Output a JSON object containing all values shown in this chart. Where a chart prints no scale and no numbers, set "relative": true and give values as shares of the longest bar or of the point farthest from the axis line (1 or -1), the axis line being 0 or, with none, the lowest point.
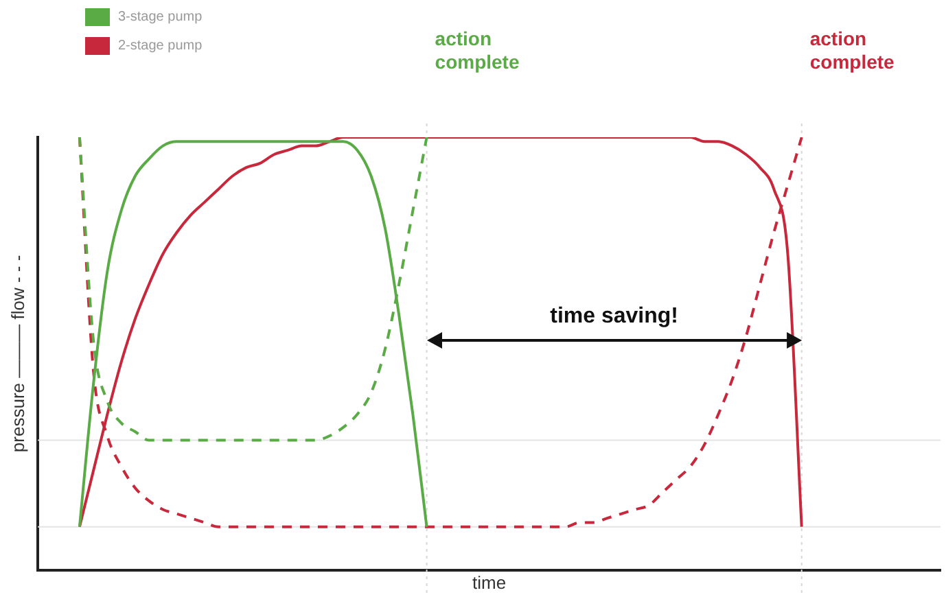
{
  "chart_data": {
    "type": "line",
    "relative": true,
    "xlabel": "time",
    "ylabel": "pressure ——— flow - - -",
    "legend": "top left",
    "grid": false,
    "categories": [
      null,
      null,
      null,
      null,
      null,
      null,
      null,
      null,
      null,
      null,
      null,
      null,
      null,
      null,
      null,
      null,
      null,
      null,
      null,
      null,
      null,
      null,
      null,
      null,
      null,
      null,
      null,
      null,
      null,
      null,
      null,
      null,
      null,
      null,
      null,
      null,
      null,
      null,
      null,
      null,
      null,
      null,
      null,
      null,
      null,
      null,
      null,
      null,
      null,
      null,
      null,
      null,
      null,
      null,
      null,
      null,
      null,
      null,
      null,
      null,
      null,
      null,
      null,
      null,
      null,
      null
    ],
    "series": [
      {
        "name": "3-stage pump",
        "color": "#5aab46",
        "line_style": "solid",
        "values": [
          null,
          null,
          null,
          0.1,
          0.43,
          0.69,
          0.83,
          0.91,
          0.95,
          0.98,
          0.99,
          0.99,
          0.99,
          0.99,
          0.99,
          0.99,
          0.99,
          0.99,
          0.99,
          0.99,
          0.99,
          0.99,
          0.99,
          0.97,
          0.91,
          0.79,
          0.59,
          0.36,
          0.1,
          null,
          null,
          null,
          null,
          null,
          null,
          null,
          null,
          null,
          null,
          null,
          null,
          null,
          null,
          null,
          null,
          null,
          null,
          null,
          null,
          null,
          null,
          null,
          null,
          null,
          null,
          null,
          null,
          null,
          null,
          null,
          null,
          null,
          null,
          null,
          null,
          null
        ]
      },
      {
        "color": "#5aab46",
        "line_style": "dashed",
        "values": [
          null,
          null,
          null,
          1,
          0.53,
          0.39,
          0.34,
          0.32,
          0.3,
          0.3,
          0.3,
          0.3,
          0.3,
          0.3,
          0.3,
          0.3,
          0.3,
          0.3,
          0.3,
          0.3,
          0.3,
          0.31,
          0.33,
          0.36,
          0.41,
          0.51,
          0.66,
          0.83,
          1,
          null,
          null,
          null,
          null,
          null,
          null,
          null,
          null,
          null,
          null,
          null,
          null,
          null,
          null,
          null,
          null,
          null,
          null,
          null,
          null,
          null,
          null,
          null,
          null,
          null,
          null,
          null,
          null,
          null,
          null,
          null,
          null,
          null,
          null,
          null,
          null,
          null
        ]
      },
      {
        "name": "2-stage pump",
        "color": "#c8283c",
        "line_style": "solid",
        "values": [
          null,
          null,
          null,
          0.1,
          0.23,
          0.36,
          0.48,
          0.58,
          0.66,
          0.73,
          0.78,
          0.82,
          0.85,
          0.88,
          0.91,
          0.93,
          0.94,
          0.96,
          0.97,
          0.98,
          0.98,
          0.99,
          1,
          1,
          1,
          1,
          1,
          1,
          1,
          1,
          1,
          1,
          1,
          1,
          1,
          1,
          1,
          1,
          1,
          1,
          1,
          1,
          1,
          1,
          1,
          1,
          1,
          1,
          0.99,
          0.99,
          0.98,
          0.96,
          0.93,
          0.88,
          0.73,
          0.1,
          null,
          null,
          null,
          null,
          null,
          null,
          null,
          null,
          null,
          null
        ]
      },
      {
        "color": "#c8283c",
        "line_style": "dashed",
        "values": [
          null,
          null,
          null,
          1,
          0.46,
          0.31,
          0.24,
          0.19,
          0.16,
          0.14,
          0.13,
          0.12,
          0.11,
          0.1,
          0.1,
          0.1,
          0.1,
          0.1,
          0.1,
          0.1,
          0.1,
          0.1,
          0.1,
          0.1,
          0.1,
          0.1,
          0.1,
          0.1,
          0.1,
          0.1,
          0.1,
          0.1,
          0.1,
          0.1,
          0.1,
          0.1,
          0.1,
          0.1,
          0.1,
          0.11,
          0.11,
          0.12,
          0.13,
          0.14,
          0.15,
          0.18,
          0.21,
          0.24,
          0.29,
          0.36,
          0.44,
          0.54,
          0.66,
          0.78,
          0.89,
          1,
          null,
          null,
          null,
          null,
          null,
          null,
          null,
          null,
          null,
          null
        ]
      }
    ],
    "ref_lines": [
      {
        "axis": "y",
        "value": 0.3,
        "color": "#e4e4e4",
        "line_style": "solid"
      },
      {
        "axis": "y",
        "value": 0.1,
        "color": "#e4e4e4",
        "line_style": "solid"
      }
    ],
    "annotations": [
      "action complete",
      "action complete",
      "time saving!"
    ]
  }
}
